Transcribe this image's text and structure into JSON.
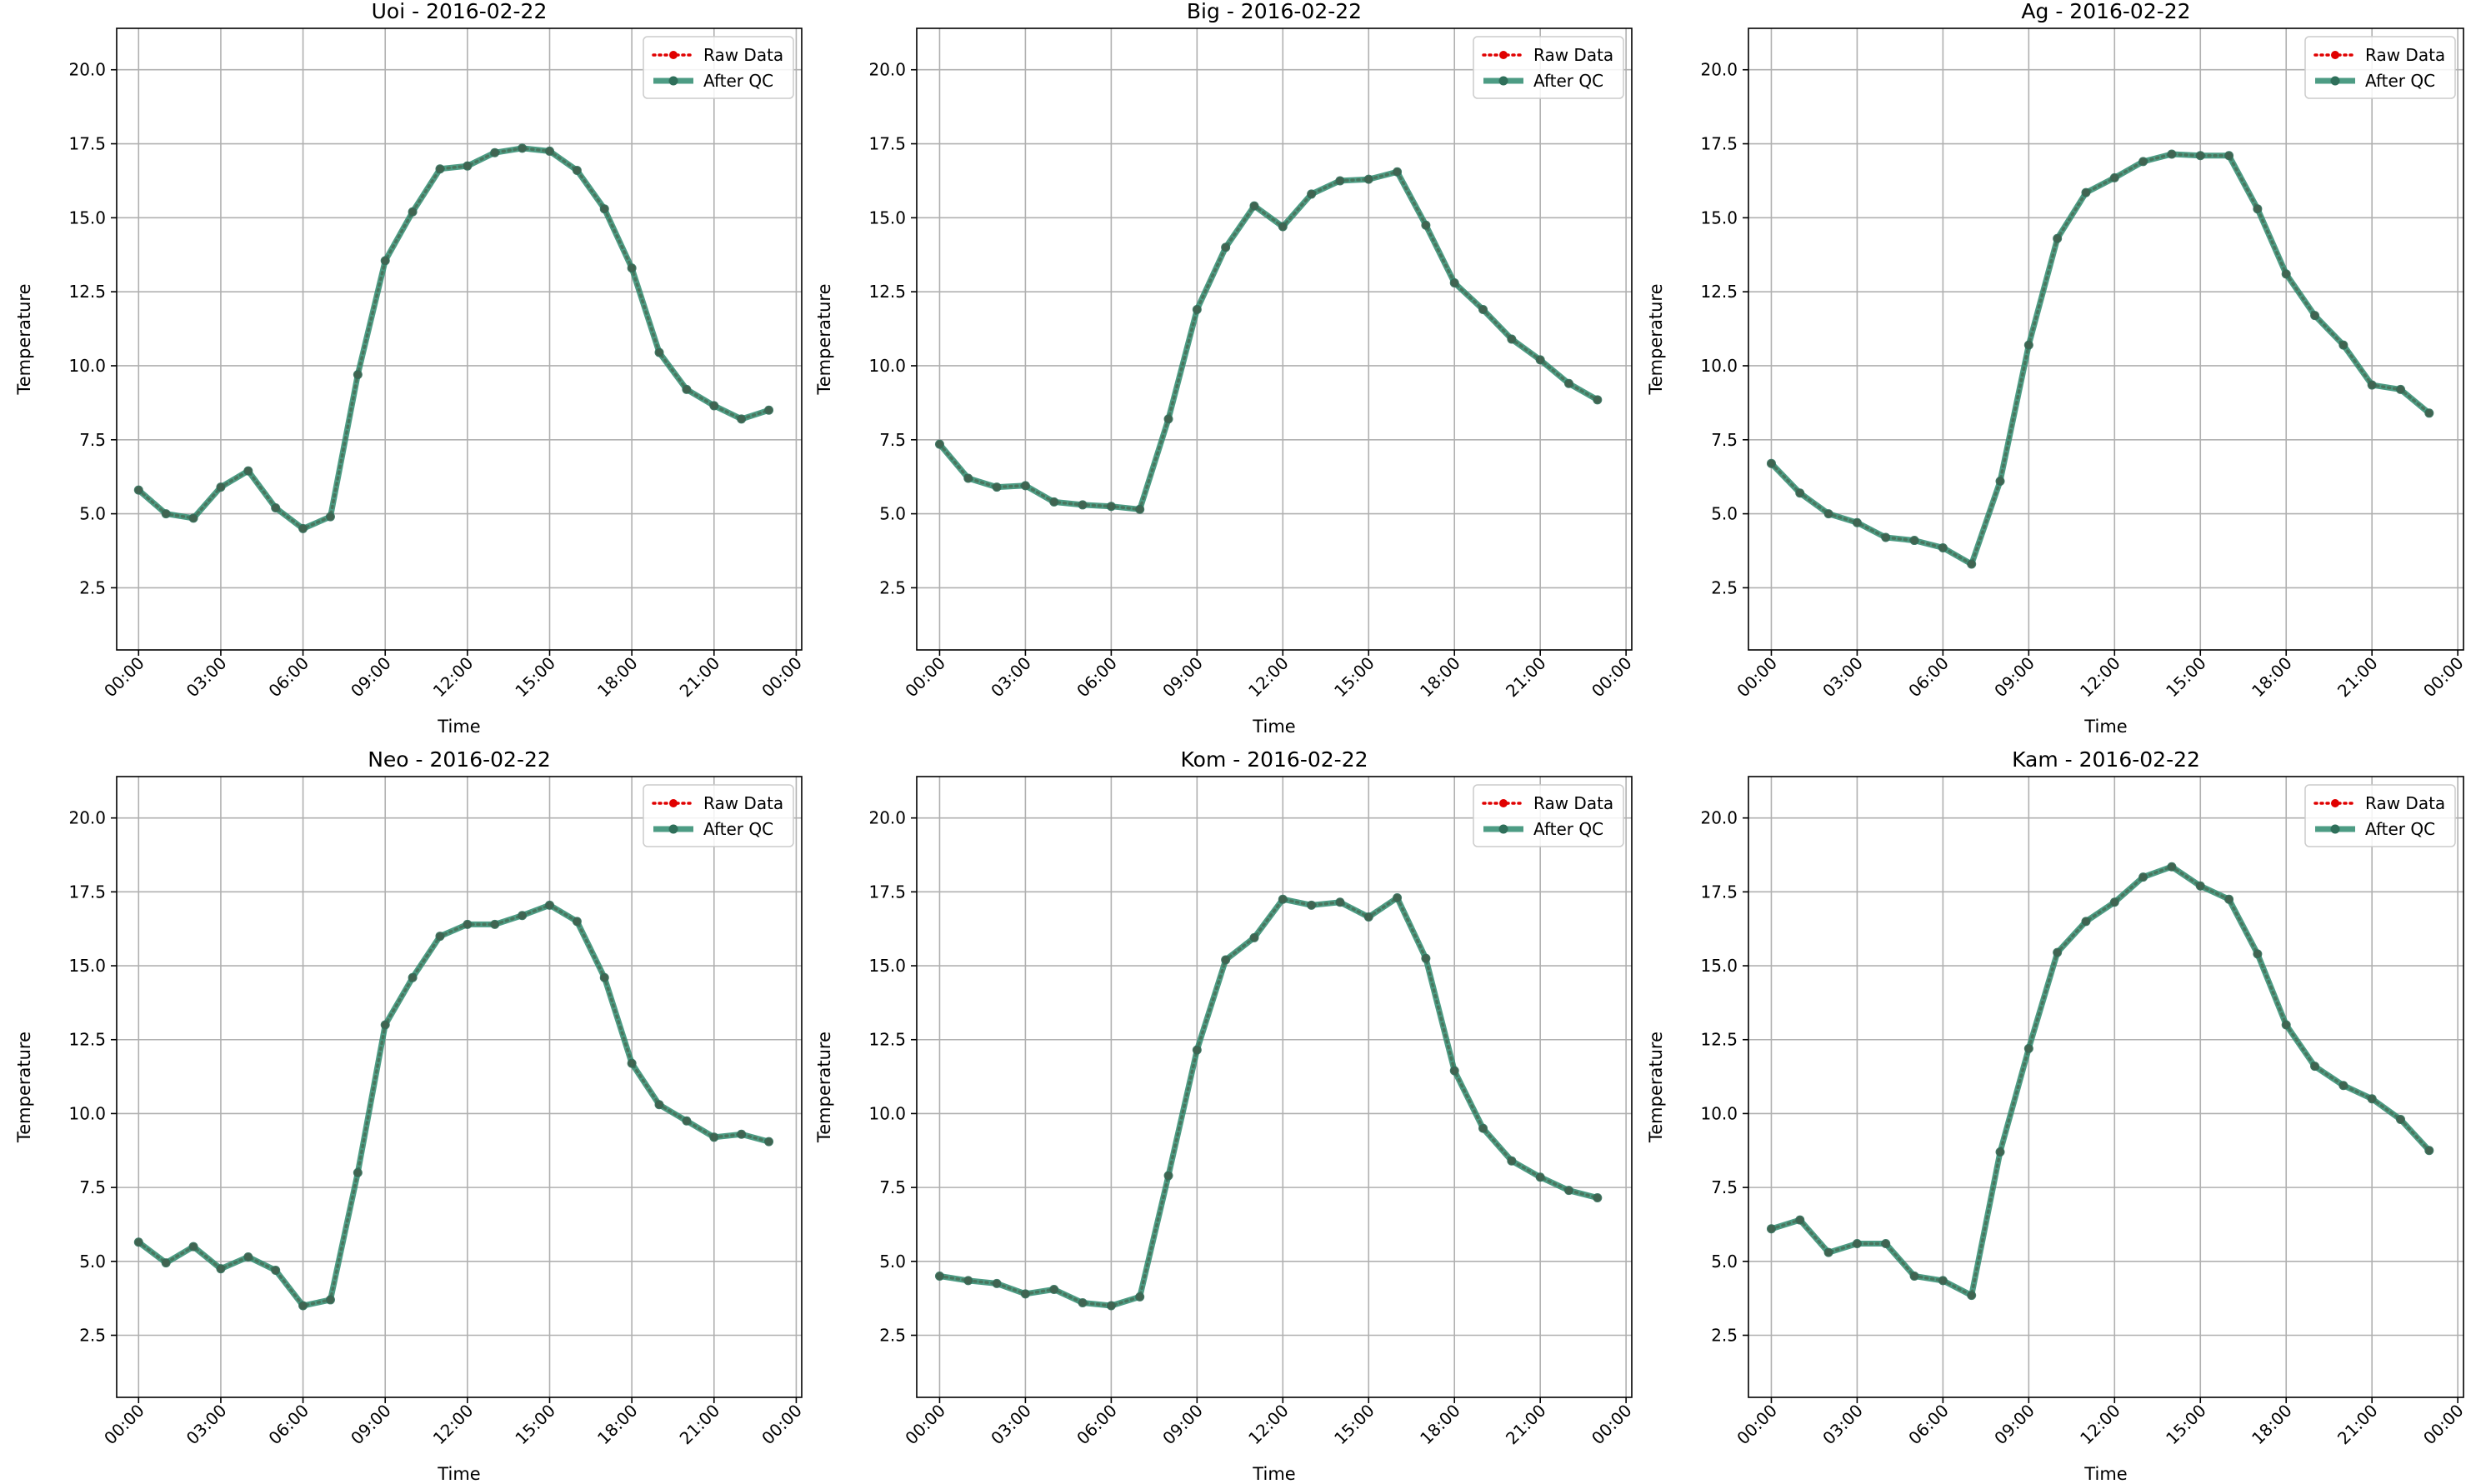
{
  "figure": {
    "date": "2016-02-22"
  },
  "chart_data": [
    {
      "type": "line",
      "title": "Uoi - 2016-02-22",
      "xlabel": "Time",
      "ylabel": "Temperature",
      "x_unit": "hour of day",
      "x": [
        0,
        1,
        2,
        3,
        4,
        5,
        6,
        7,
        8,
        9,
        10,
        11,
        12,
        13,
        14,
        15,
        16,
        17,
        18,
        19,
        20,
        21,
        22,
        23
      ],
      "xlim": [
        "2016-02-22 00:00",
        "2016-02-23 00:00"
      ],
      "xticks": [
        "00:00",
        "03:00",
        "06:00",
        "09:00",
        "12:00",
        "15:00",
        "18:00",
        "21:00",
        "00:00"
      ],
      "ylim": [
        0.4,
        21.4
      ],
      "yticks": [
        "2.5",
        "5.0",
        "7.5",
        "10.0",
        "12.5",
        "15.0",
        "17.5",
        "20.0"
      ],
      "grid": true,
      "legend_position": "top-right",
      "series": [
        {
          "name": "Raw Data",
          "color": "#e00000",
          "style": "dotted",
          "values": [
            5.8,
            5.0,
            4.85,
            5.9,
            6.45,
            5.2,
            4.5,
            4.9,
            9.7,
            13.55,
            15.2,
            16.65,
            16.75,
            17.2,
            17.35,
            17.25,
            16.6,
            15.3,
            13.3,
            10.45,
            9.2,
            8.65,
            8.2,
            8.5
          ]
        },
        {
          "name": "After QC",
          "color": "#2e8b6e",
          "style": "solid",
          "values": [
            5.8,
            5.0,
            4.85,
            5.9,
            6.45,
            5.2,
            4.5,
            4.9,
            9.7,
            13.55,
            15.2,
            16.65,
            16.75,
            17.2,
            17.35,
            17.25,
            16.6,
            15.3,
            13.3,
            10.45,
            9.2,
            8.65,
            8.2,
            8.5
          ]
        }
      ]
    },
    {
      "type": "line",
      "title": "Big - 2016-02-22",
      "xlabel": "Time",
      "ylabel": "Temperature",
      "x_unit": "hour of day",
      "x": [
        0,
        1,
        2,
        3,
        4,
        5,
        6,
        7,
        8,
        9,
        10,
        11,
        12,
        13,
        14,
        15,
        16,
        17,
        18,
        19,
        20,
        21,
        22,
        23
      ],
      "xlim": [
        "2016-02-22 00:00",
        "2016-02-23 00:00"
      ],
      "xticks": [
        "00:00",
        "03:00",
        "06:00",
        "09:00",
        "12:00",
        "15:00",
        "18:00",
        "21:00",
        "00:00"
      ],
      "ylim": [
        0.4,
        21.4
      ],
      "yticks": [
        "2.5",
        "5.0",
        "7.5",
        "10.0",
        "12.5",
        "15.0",
        "17.5",
        "20.0"
      ],
      "grid": true,
      "legend_position": "top-right",
      "series": [
        {
          "name": "Raw Data",
          "color": "#e00000",
          "style": "dotted",
          "values": [
            7.35,
            6.2,
            5.9,
            5.95,
            5.4,
            5.3,
            5.25,
            5.15,
            8.2,
            11.9,
            14.0,
            15.4,
            14.7,
            15.8,
            16.25,
            16.3,
            16.55,
            14.75,
            12.8,
            11.9,
            10.9,
            10.2,
            9.4,
            8.85
          ]
        },
        {
          "name": "After QC",
          "color": "#2e8b6e",
          "style": "solid",
          "values": [
            7.35,
            6.2,
            5.9,
            5.95,
            5.4,
            5.3,
            5.25,
            5.15,
            8.2,
            11.9,
            14.0,
            15.4,
            14.7,
            15.8,
            16.25,
            16.3,
            16.55,
            14.75,
            12.8,
            11.9,
            10.9,
            10.2,
            9.4,
            8.85
          ]
        }
      ]
    },
    {
      "type": "line",
      "title": "Ag - 2016-02-22",
      "xlabel": "Time",
      "ylabel": "Temperature",
      "x_unit": "hour of day",
      "x": [
        0,
        1,
        2,
        3,
        4,
        5,
        6,
        7,
        8,
        9,
        10,
        11,
        12,
        13,
        14,
        15,
        16,
        17,
        18,
        19,
        20,
        21,
        22,
        23
      ],
      "xlim": [
        "2016-02-22 00:00",
        "2016-02-23 00:00"
      ],
      "xticks": [
        "00:00",
        "03:00",
        "06:00",
        "09:00",
        "12:00",
        "15:00",
        "18:00",
        "21:00",
        "00:00"
      ],
      "ylim": [
        0.4,
        21.4
      ],
      "yticks": [
        "2.5",
        "5.0",
        "7.5",
        "10.0",
        "12.5",
        "15.0",
        "17.5",
        "20.0"
      ],
      "grid": true,
      "legend_position": "top-right",
      "series": [
        {
          "name": "Raw Data",
          "color": "#e00000",
          "style": "dotted",
          "values": [
            6.7,
            5.7,
            5.0,
            4.7,
            4.2,
            4.1,
            3.85,
            3.3,
            6.1,
            10.7,
            14.3,
            15.85,
            16.35,
            16.9,
            17.15,
            17.1,
            17.1,
            15.3,
            13.1,
            11.7,
            10.7,
            9.35,
            9.2,
            8.4
          ]
        },
        {
          "name": "After QC",
          "color": "#2e8b6e",
          "style": "solid",
          "values": [
            6.7,
            5.7,
            5.0,
            4.7,
            4.2,
            4.1,
            3.85,
            3.3,
            6.1,
            10.7,
            14.3,
            15.85,
            16.35,
            16.9,
            17.15,
            17.1,
            17.1,
            15.3,
            13.1,
            11.7,
            10.7,
            9.35,
            9.2,
            8.4
          ]
        }
      ]
    },
    {
      "type": "line",
      "title": "Neo - 2016-02-22",
      "xlabel": "Time",
      "ylabel": "Temperature",
      "x_unit": "hour of day",
      "x": [
        0,
        1,
        2,
        3,
        4,
        5,
        6,
        7,
        8,
        9,
        10,
        11,
        12,
        13,
        14,
        15,
        16,
        17,
        18,
        19,
        20,
        21,
        22,
        23
      ],
      "xlim": [
        "2016-02-22 00:00",
        "2016-02-23 00:00"
      ],
      "xticks": [
        "00:00",
        "03:00",
        "06:00",
        "09:00",
        "12:00",
        "15:00",
        "18:00",
        "21:00",
        "00:00"
      ],
      "ylim": [
        0.4,
        21.4
      ],
      "yticks": [
        "2.5",
        "5.0",
        "7.5",
        "10.0",
        "12.5",
        "15.0",
        "17.5",
        "20.0"
      ],
      "grid": true,
      "legend_position": "top-right",
      "series": [
        {
          "name": "Raw Data",
          "color": "#e00000",
          "style": "dotted",
          "values": [
            5.65,
            4.95,
            5.5,
            4.75,
            5.15,
            4.7,
            3.5,
            3.7,
            8.0,
            13.0,
            14.6,
            16.0,
            16.4,
            16.4,
            16.7,
            17.05,
            16.5,
            14.6,
            11.7,
            10.3,
            9.75,
            9.2,
            9.3,
            9.05
          ]
        },
        {
          "name": "After QC",
          "color": "#2e8b6e",
          "style": "solid",
          "values": [
            5.65,
            4.95,
            5.5,
            4.75,
            5.15,
            4.7,
            3.5,
            3.7,
            8.0,
            13.0,
            14.6,
            16.0,
            16.4,
            16.4,
            16.7,
            17.05,
            16.5,
            14.6,
            11.7,
            10.3,
            9.75,
            9.2,
            9.3,
            9.05
          ]
        }
      ]
    },
    {
      "type": "line",
      "title": "Kom - 2016-02-22",
      "xlabel": "Time",
      "ylabel": "Temperature",
      "x_unit": "hour of day",
      "x": [
        0,
        1,
        2,
        3,
        4,
        5,
        6,
        7,
        8,
        9,
        10,
        11,
        12,
        13,
        14,
        15,
        16,
        17,
        18,
        19,
        20,
        21,
        22,
        23
      ],
      "xlim": [
        "2016-02-22 00:00",
        "2016-02-23 00:00"
      ],
      "xticks": [
        "00:00",
        "03:00",
        "06:00",
        "09:00",
        "12:00",
        "15:00",
        "18:00",
        "21:00",
        "00:00"
      ],
      "ylim": [
        0.4,
        21.4
      ],
      "yticks": [
        "2.5",
        "5.0",
        "7.5",
        "10.0",
        "12.5",
        "15.0",
        "17.5",
        "20.0"
      ],
      "grid": true,
      "legend_position": "top-right",
      "series": [
        {
          "name": "Raw Data",
          "color": "#e00000",
          "style": "dotted",
          "values": [
            4.5,
            4.35,
            4.25,
            3.9,
            4.05,
            3.6,
            3.5,
            3.8,
            7.9,
            12.15,
            15.2,
            15.95,
            17.25,
            17.05,
            17.15,
            16.65,
            17.3,
            15.25,
            11.45,
            9.5,
            8.4,
            7.85,
            7.4,
            7.15
          ]
        },
        {
          "name": "After QC",
          "color": "#2e8b6e",
          "style": "solid",
          "values": [
            4.5,
            4.35,
            4.25,
            3.9,
            4.05,
            3.6,
            3.5,
            3.8,
            7.9,
            12.15,
            15.2,
            15.95,
            17.25,
            17.05,
            17.15,
            16.65,
            17.3,
            15.25,
            11.45,
            9.5,
            8.4,
            7.85,
            7.4,
            7.15
          ]
        }
      ]
    },
    {
      "type": "line",
      "title": "Kam - 2016-02-22",
      "xlabel": "Time",
      "ylabel": "Temperature",
      "x_unit": "hour of day",
      "x": [
        0,
        1,
        2,
        3,
        4,
        5,
        6,
        7,
        8,
        9,
        10,
        11,
        12,
        13,
        14,
        15,
        16,
        17,
        18,
        19,
        20,
        21,
        22,
        23
      ],
      "xlim": [
        "2016-02-22 00:00",
        "2016-02-23 00:00"
      ],
      "xticks": [
        "00:00",
        "03:00",
        "06:00",
        "09:00",
        "12:00",
        "15:00",
        "18:00",
        "21:00",
        "00:00"
      ],
      "ylim": [
        0.4,
        21.4
      ],
      "yticks": [
        "2.5",
        "5.0",
        "7.5",
        "10.0",
        "12.5",
        "15.0",
        "17.5",
        "20.0"
      ],
      "grid": true,
      "legend_position": "top-right",
      "series": [
        {
          "name": "Raw Data",
          "color": "#e00000",
          "style": "dotted",
          "values": [
            6.1,
            6.4,
            5.3,
            5.6,
            5.6,
            4.5,
            4.35,
            3.85,
            8.7,
            12.2,
            15.45,
            16.5,
            17.15,
            18.0,
            18.35,
            17.7,
            17.25,
            15.4,
            13.0,
            11.6,
            10.95,
            10.5,
            9.8,
            8.75
          ]
        },
        {
          "name": "After QC",
          "color": "#2e8b6e",
          "style": "solid",
          "values": [
            6.1,
            6.4,
            5.3,
            5.6,
            5.6,
            4.5,
            4.35,
            3.85,
            8.7,
            12.2,
            15.45,
            16.5,
            17.15,
            18.0,
            18.35,
            17.7,
            17.25,
            15.4,
            13.0,
            11.6,
            10.95,
            10.5,
            9.8,
            8.75
          ]
        }
      ]
    }
  ]
}
